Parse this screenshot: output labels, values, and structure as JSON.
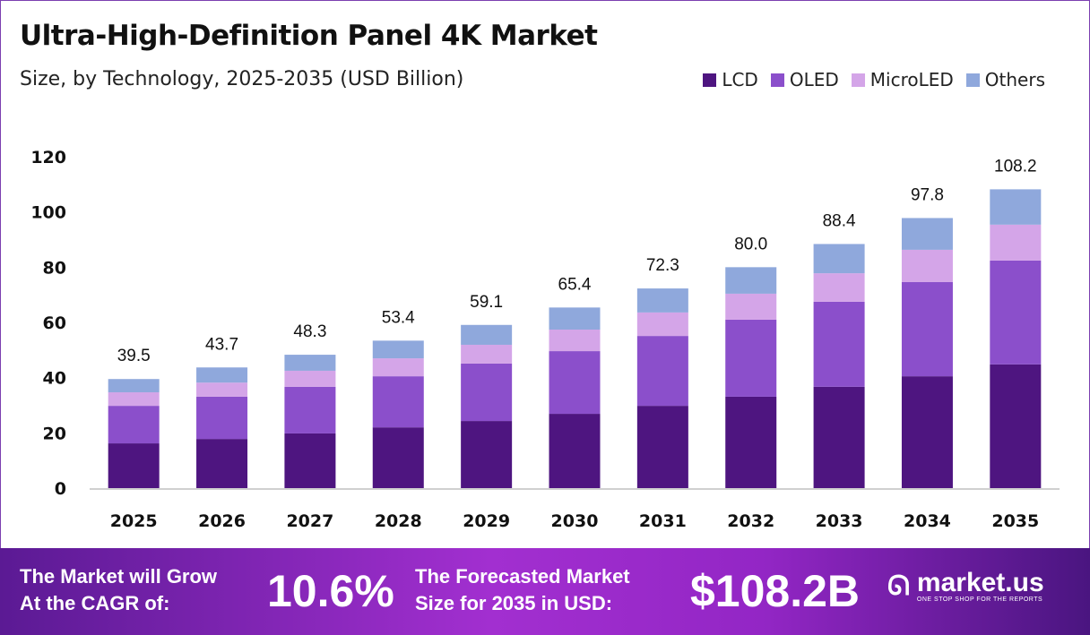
{
  "chart_data": {
    "type": "bar",
    "stacked": true,
    "title": "Ultra-High-Definition Panel 4K Market",
    "subtitle": "Size, by Technology, 2025-2035 (USD Billion)",
    "categories": [
      "2025",
      "2026",
      "2027",
      "2028",
      "2029",
      "2030",
      "2031",
      "2032",
      "2033",
      "2034",
      "2035"
    ],
    "series": [
      {
        "name": "LCD",
        "color": "#4e1580",
        "values": [
          16.2,
          17.8,
          19.8,
          22.0,
          24.3,
          26.9,
          29.8,
          33.1,
          36.7,
          40.5,
          44.8
        ]
      },
      {
        "name": "OLED",
        "color": "#8b4fcb",
        "values": [
          13.6,
          15.3,
          16.9,
          18.5,
          20.8,
          22.7,
          25.3,
          27.9,
          30.8,
          34.1,
          37.6
        ]
      },
      {
        "name": "MicroLED",
        "color": "#d4a5e8",
        "values": [
          4.9,
          5.1,
          5.8,
          6.5,
          6.8,
          7.8,
          8.5,
          9.4,
          10.3,
          11.7,
          13.0
        ]
      },
      {
        "name": "Others",
        "color": "#8fa8dc",
        "values": [
          4.8,
          5.5,
          5.8,
          6.4,
          7.2,
          8.0,
          8.7,
          9.6,
          10.6,
          11.5,
          12.8
        ]
      }
    ],
    "totals": [
      "39.5",
      "43.7",
      "48.3",
      "53.4",
      "59.1",
      "65.4",
      "72.3",
      "80.0",
      "88.4",
      "97.8",
      "108.2"
    ],
    "yticks": [
      "0",
      "20",
      "40",
      "60",
      "80",
      "100",
      "120"
    ],
    "ylim": [
      0,
      120
    ],
    "grid": false,
    "legend": "top-right",
    "xlabel": "",
    "ylabel": ""
  },
  "footer": {
    "cagr_label_line1": "The Market will Grow",
    "cagr_label_line2": "At the CAGR of:",
    "cagr_value": "10.6%",
    "forecast_label_line1": "The Forecasted Market",
    "forecast_label_line2": "Size for 2035 in USD:",
    "forecast_value": "$108.2B",
    "brand": "market.us",
    "brand_tagline": "ONE STOP SHOP FOR THE REPORTS"
  }
}
